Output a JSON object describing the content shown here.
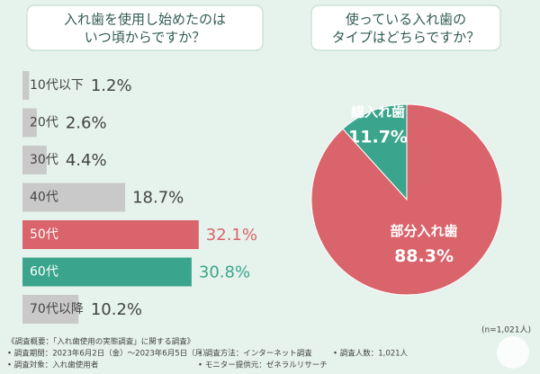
{
  "chart_data": [
    {
      "type": "bar",
      "title": [
        "入れ歯を使用し始めたのは",
        "いつ頃からですか？"
      ],
      "categories": [
        "10代以下",
        "20代",
        "30代",
        "40代",
        "50代",
        "60代",
        "70代以降"
      ],
      "values": [
        1.2,
        2.6,
        4.4,
        18.7,
        32.1,
        30.8,
        10.2
      ],
      "value_labels": [
        "1.2%",
        "2.6%",
        "4.4%",
        "18.7%",
        "32.1%",
        "30.8%",
        "10.2%"
      ],
      "colors": [
        "#c9c9c9",
        "#c9c9c9",
        "#c9c9c9",
        "#c9c9c9",
        "#d9646b",
        "#3aa58c",
        "#c9c9c9"
      ]
    },
    {
      "type": "pie",
      "title": [
        "使っている入れ歯の",
        "タイプはどちらですか？"
      ],
      "categories": [
        "総入れ歯",
        "部分入れ歯"
      ],
      "values": [
        11.7,
        88.3
      ],
      "value_labels": [
        "11.7%",
        "88.3%"
      ],
      "colors": [
        "#3aa58c",
        "#d9646b"
      ],
      "note": "(n=1,021人)"
    }
  ],
  "footer": {
    "heading": "《調査概要：「入れ歯使用の実態調査」に関する調査》",
    "items": [
      "• 調査期間：2023年6月2日（金）～2023年6月5日（月）",
      "• 調査対象：入れ歯使用者",
      "• 調査方法：インターネット調査",
      "• モニター提供元：ゼネラルリサーチ",
      "• 調査人数：1,021人"
    ]
  }
}
